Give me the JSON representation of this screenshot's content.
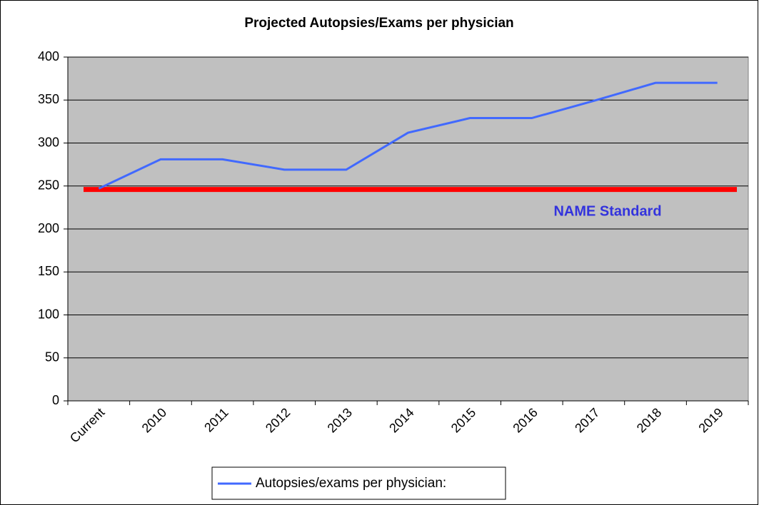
{
  "chart_data": {
    "type": "line",
    "title": "Projected Autopsies/Exams per physician",
    "categories": [
      "Current",
      "2010",
      "2011",
      "2012",
      "2013",
      "2014",
      "2015",
      "2016",
      "2017",
      "2018",
      "2019"
    ],
    "series": [
      {
        "name": "Autopsies/exams per physician:",
        "color": "#4169ff",
        "values": [
          247,
          281,
          281,
          269,
          269,
          312,
          329,
          329,
          349,
          370,
          370
        ]
      }
    ],
    "reference": {
      "value": 246,
      "label": "NAME Standard",
      "color": "#ff0000",
      "label_color": "#3333dd"
    },
    "ylim": [
      0,
      400
    ],
    "yticks": [
      0,
      50,
      100,
      150,
      200,
      250,
      300,
      350,
      400
    ],
    "grid": true,
    "plot_background": "#c0c0c0",
    "legend": "bottom"
  }
}
